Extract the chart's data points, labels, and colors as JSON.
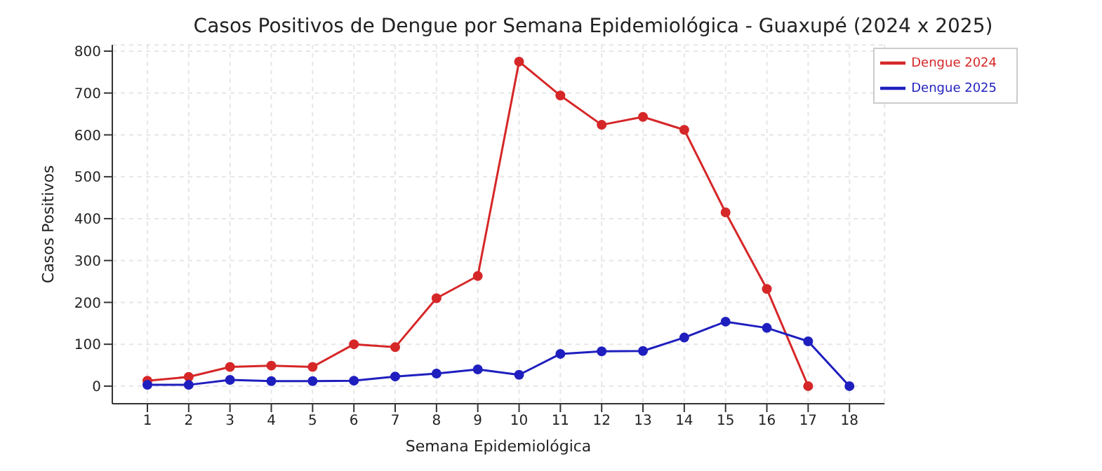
{
  "chart_data": {
    "type": "line",
    "title": "Casos Positivos de Dengue por Semana Epidemiológica - Guaxupé (2024 x 2025)",
    "xlabel": "Semana Epidemiológica",
    "ylabel": "Casos Positivos",
    "series": [
      {
        "name": "Dengue 2024",
        "color": "#d62728",
        "x": [
          1,
          2,
          3,
          4,
          5,
          6,
          7,
          8,
          9,
          10,
          11,
          12,
          13,
          14,
          15,
          16,
          17
        ],
        "values": [
          13,
          22,
          46,
          49,
          46,
          100,
          93,
          210,
          263,
          775,
          694,
          624,
          643,
          612,
          415,
          232,
          0
        ]
      },
      {
        "name": "Dengue 2025",
        "color": "#1f1fbf",
        "x": [
          1,
          2,
          3,
          4,
          5,
          6,
          7,
          8,
          9,
          10,
          11,
          12,
          13,
          14,
          15,
          16,
          17,
          18
        ],
        "values": [
          3,
          3,
          15,
          12,
          12,
          13,
          23,
          30,
          40,
          27,
          77,
          83,
          84,
          116,
          154,
          139,
          107,
          0
        ]
      }
    ],
    "xlim": [
      0.15,
      18.85
    ],
    "xticks": [
      1,
      2,
      3,
      4,
      5,
      6,
      7,
      8,
      9,
      10,
      11,
      12,
      13,
      14,
      15,
      16,
      17,
      18
    ],
    "ylim": [
      -42,
      815
    ],
    "yticks": [
      0,
      100,
      200,
      300,
      400,
      500,
      600,
      700,
      800
    ],
    "grid": true,
    "legend": "top right",
    "marker": "circle",
    "line_style": "solid"
  }
}
